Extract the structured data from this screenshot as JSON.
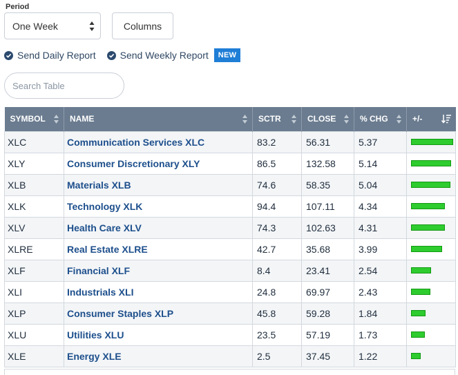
{
  "period": {
    "label": "Period",
    "selected": "One Week"
  },
  "columns_button": "Columns",
  "reports": {
    "daily": "Send Daily Report",
    "weekly": "Send Weekly Report",
    "new_badge": "NEW"
  },
  "search": {
    "placeholder": "Search Table",
    "value": ""
  },
  "table": {
    "headers": {
      "symbol": "SYMBOL",
      "name": "NAME",
      "sctr": "SCTR",
      "close": "CLOSE",
      "pct_chg": "% CHG",
      "plus_minus": "+/-"
    },
    "bar_max_pct": 5.37,
    "bar_color": "#2ecc2e",
    "rows": [
      {
        "symbol": "XLC",
        "name": "Communication Services XLC",
        "sctr": "83.2",
        "close": "56.31",
        "pct_chg": "5.37"
      },
      {
        "symbol": "XLY",
        "name": "Consumer Discretionary XLY",
        "sctr": "86.5",
        "close": "132.58",
        "pct_chg": "5.14"
      },
      {
        "symbol": "XLB",
        "name": "Materials XLB",
        "sctr": "74.6",
        "close": "58.35",
        "pct_chg": "5.04"
      },
      {
        "symbol": "XLK",
        "name": "Technology XLK",
        "sctr": "94.4",
        "close": "107.11",
        "pct_chg": "4.34"
      },
      {
        "symbol": "XLV",
        "name": "Health Care XLV",
        "sctr": "74.3",
        "close": "102.63",
        "pct_chg": "4.31"
      },
      {
        "symbol": "XLRE",
        "name": "Real Estate XLRE",
        "sctr": "42.7",
        "close": "35.68",
        "pct_chg": "3.99"
      },
      {
        "symbol": "XLF",
        "name": "Financial XLF",
        "sctr": "8.4",
        "close": "23.41",
        "pct_chg": "2.54"
      },
      {
        "symbol": "XLI",
        "name": "Industrials XLI",
        "sctr": "24.8",
        "close": "69.97",
        "pct_chg": "2.43"
      },
      {
        "symbol": "XLP",
        "name": "Consumer Staples XLP",
        "sctr": "45.8",
        "close": "59.28",
        "pct_chg": "1.84"
      },
      {
        "symbol": "XLU",
        "name": "Utilities XLU",
        "sctr": "23.5",
        "close": "57.19",
        "pct_chg": "1.73"
      },
      {
        "symbol": "XLE",
        "name": "Energy XLE",
        "sctr": "2.5",
        "close": "37.45",
        "pct_chg": "1.22"
      }
    ]
  }
}
